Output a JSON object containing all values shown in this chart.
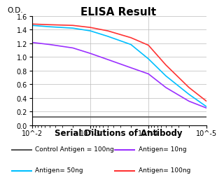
{
  "title": "ELISA Result",
  "ylabel": "O.D.",
  "xlabel": "Serial Dilutions of Antibody",
  "ylim": [
    0,
    1.6
  ],
  "yticks": [
    0,
    0.2,
    0.4,
    0.6,
    0.8,
    1.0,
    1.2,
    1.4,
    1.6
  ],
  "xtick_vals": [
    0.01,
    0.001,
    0.0001,
    1e-05
  ],
  "xtick_labels": [
    "10^-2",
    "10^-3",
    "10^-4",
    "10^-5"
  ],
  "lines": [
    {
      "label": "Control Antigen = 100ng",
      "color": "#555555",
      "x": [
        0.01,
        0.001,
        0.0001,
        1e-05
      ],
      "y": [
        0.12,
        0.12,
        0.12,
        0.12
      ]
    },
    {
      "label": "Antigen= 10ng",
      "color": "#9B30FF",
      "x": [
        0.01,
        0.005,
        0.002,
        0.001,
        0.0005,
        0.0002,
        0.0001,
        5e-05,
        2e-05,
        1e-05
      ],
      "y": [
        1.21,
        1.18,
        1.13,
        1.05,
        0.96,
        0.84,
        0.75,
        0.55,
        0.35,
        0.25
      ]
    },
    {
      "label": "Antigen= 50ng",
      "color": "#00BFFF",
      "x": [
        0.01,
        0.005,
        0.002,
        0.001,
        0.0005,
        0.0002,
        0.0001,
        5e-05,
        2e-05,
        1e-05
      ],
      "y": [
        1.46,
        1.44,
        1.42,
        1.38,
        1.3,
        1.18,
        0.97,
        0.72,
        0.45,
        0.27
      ]
    },
    {
      "label": "Antigen= 100ng",
      "color": "#FF3333",
      "x": [
        0.01,
        0.005,
        0.002,
        0.001,
        0.0005,
        0.0002,
        0.0001,
        5e-05,
        2e-05,
        1e-05
      ],
      "y": [
        1.48,
        1.47,
        1.46,
        1.43,
        1.38,
        1.28,
        1.17,
        0.88,
        0.55,
        0.35
      ]
    }
  ],
  "legend_items": [
    {
      "label": "Control Antigen = 100ng",
      "color": "#555555"
    },
    {
      "label": "Antigen= 10ng",
      "color": "#9B30FF"
    },
    {
      "label": "Antigen= 50ng",
      "color": "#00BFFF"
    },
    {
      "label": "Antigen= 100ng",
      "color": "#FF3333"
    }
  ],
  "title_fontsize": 11,
  "xlabel_fontsize": 8.5,
  "ylabel_fontsize": 7.5,
  "tick_fontsize": 7,
  "legend_fontsize": 6.5,
  "grid_color": "#bbbbbb",
  "background_color": "#ffffff"
}
